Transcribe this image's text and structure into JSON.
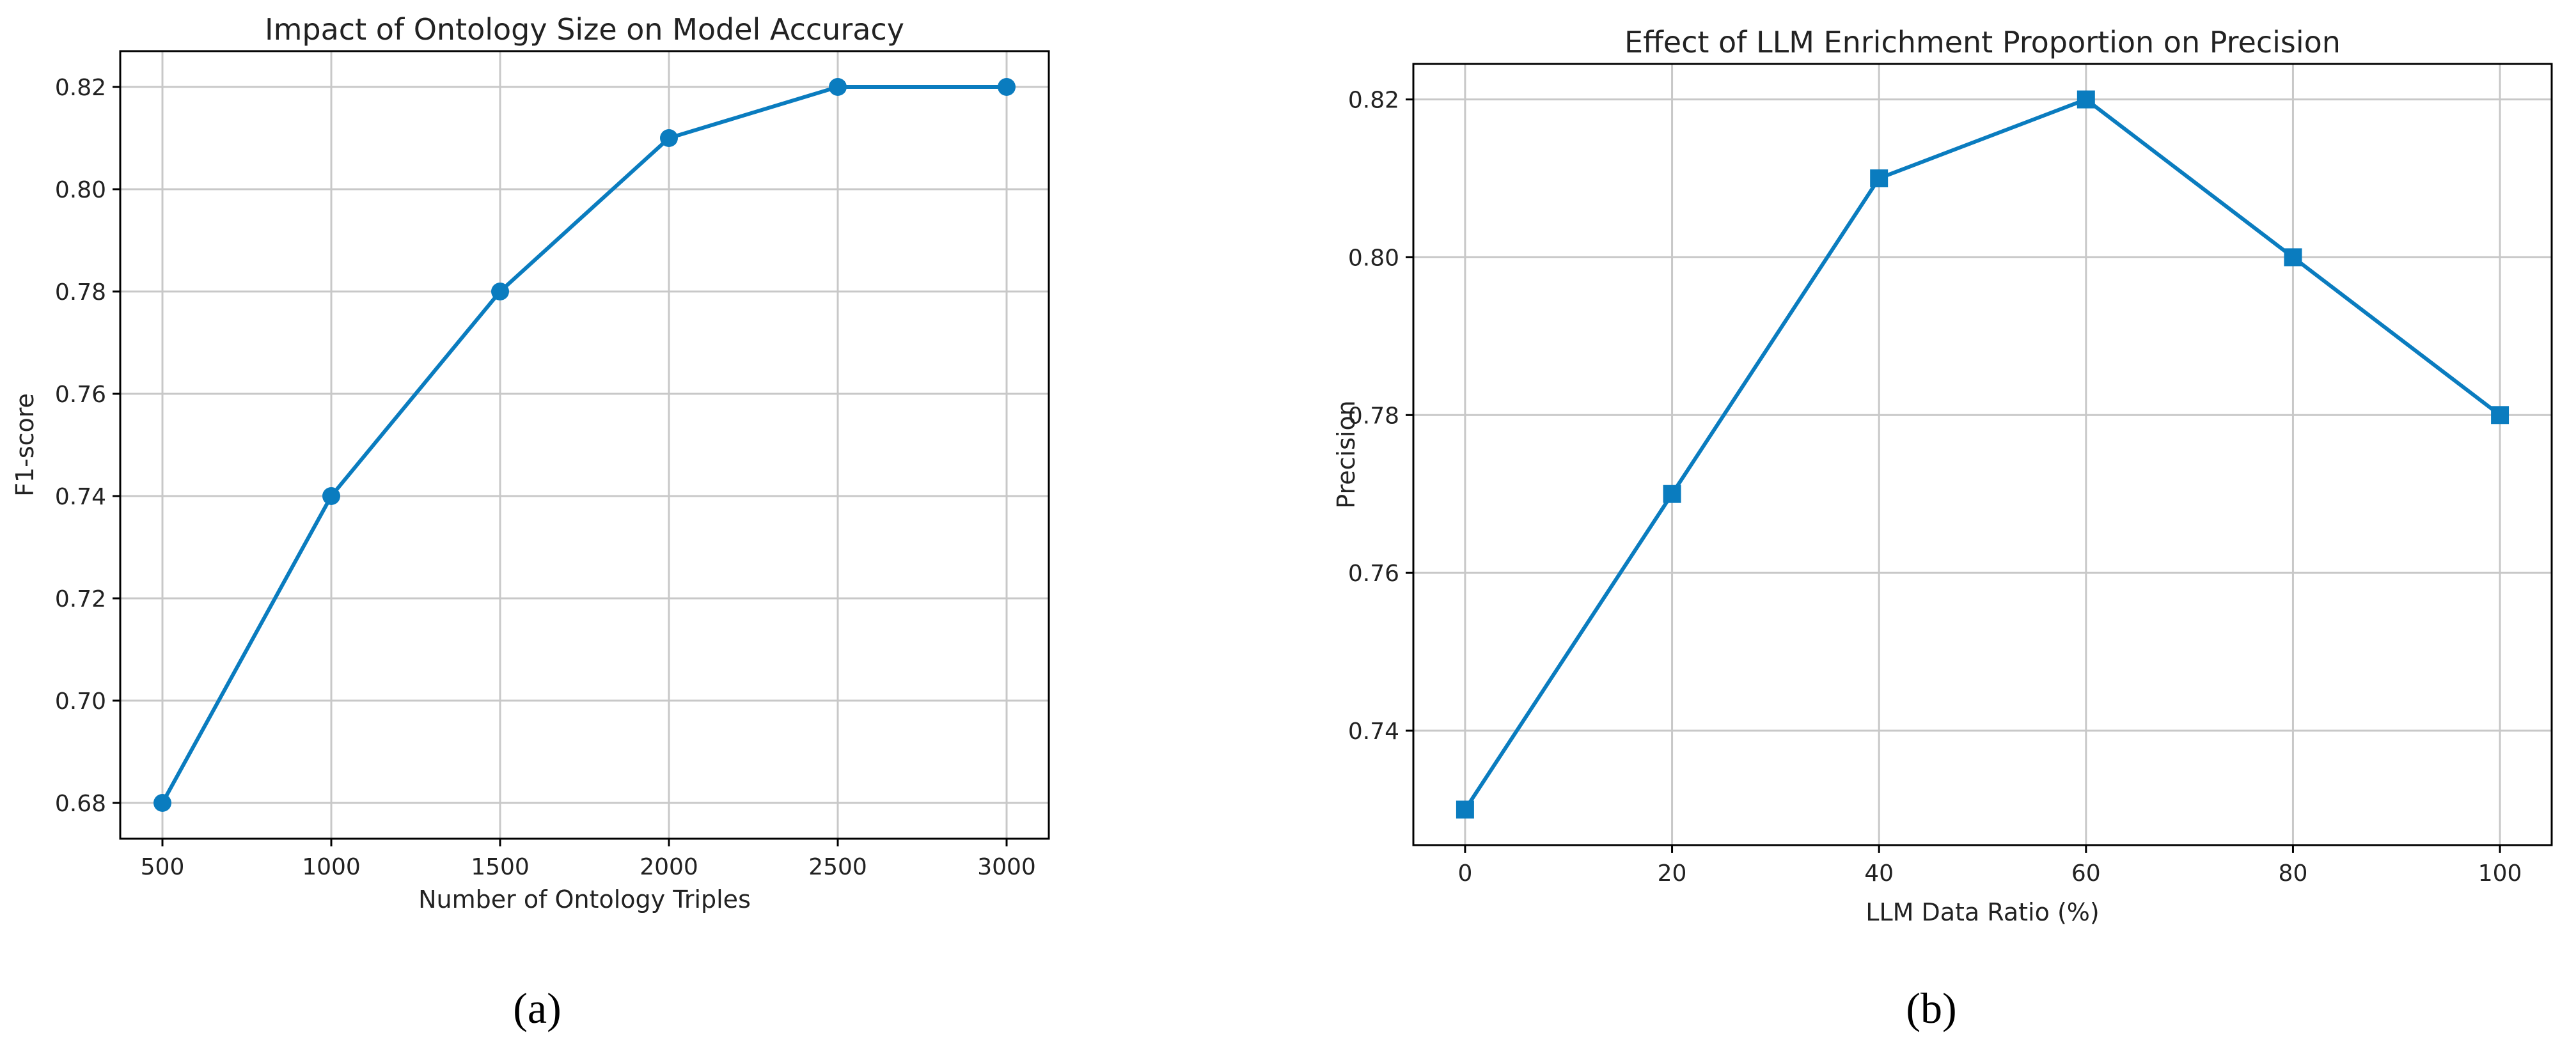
{
  "chart_data": [
    {
      "type": "line",
      "panel_label": "(a)",
      "title": "Impact of Ontology Size on Model Accuracy",
      "xlabel": "Number of Ontology Triples",
      "ylabel": "F1-score",
      "x": [
        500,
        1000,
        1500,
        2000,
        2500,
        3000
      ],
      "x_ticks": [
        "500",
        "1000",
        "1500",
        "2000",
        "2500",
        "3000"
      ],
      "y_ticks": [
        "0.68",
        "0.70",
        "0.72",
        "0.74",
        "0.76",
        "0.78",
        "0.80",
        "0.82"
      ],
      "xlim": [
        375,
        3125
      ],
      "ylim": [
        0.673,
        0.827
      ],
      "series": [
        {
          "values": [
            0.68,
            0.74,
            0.78,
            0.81,
            0.82,
            0.82
          ],
          "marker": "circle"
        }
      ],
      "grid": true,
      "color": "#0a7cbf"
    },
    {
      "type": "line",
      "panel_label": "(b)",
      "title": "Effect of LLM Enrichment Proportion on Precision",
      "xlabel": "LLM Data Ratio (%)",
      "ylabel": "Precision",
      "x": [
        0,
        20,
        40,
        60,
        80,
        100
      ],
      "x_ticks": [
        "0",
        "20",
        "40",
        "60",
        "80",
        "100"
      ],
      "y_ticks": [
        "0.74",
        "0.76",
        "0.78",
        "0.80",
        "0.82"
      ],
      "xlim": [
        -5,
        105
      ],
      "ylim": [
        0.7255,
        0.8245
      ],
      "series": [
        {
          "values": [
            0.73,
            0.77,
            0.81,
            0.82,
            0.8,
            0.78
          ],
          "marker": "square"
        }
      ],
      "grid": true,
      "color": "#0a7cbf"
    }
  ]
}
